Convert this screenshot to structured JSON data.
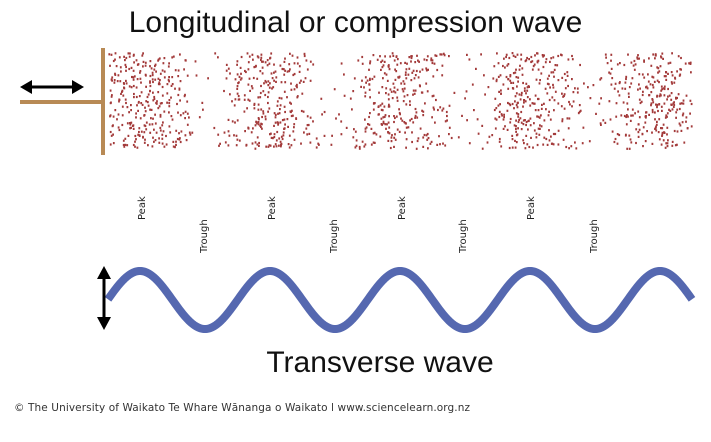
{
  "diagram": {
    "top_title": "Longitudinal or compression wave",
    "bottom_title": "Transverse wave",
    "credit": "© The University of Waikato Te Whare Wānanga o Waikato l www.sciencelearn.org.nz",
    "labels": [
      "Peak",
      "Trough",
      "Peak",
      "Trough",
      "Peak",
      "Trough",
      "Peak",
      "Trough"
    ],
    "colors": {
      "particles": "#a33a3a",
      "wave": "#5568b0",
      "plunger": "#b88a55",
      "arrows": "#000000"
    },
    "icons": {
      "horizontal_arrow": "double-headed-horizontal-arrow",
      "vertical_arrow": "double-headed-vertical-arrow"
    }
  }
}
